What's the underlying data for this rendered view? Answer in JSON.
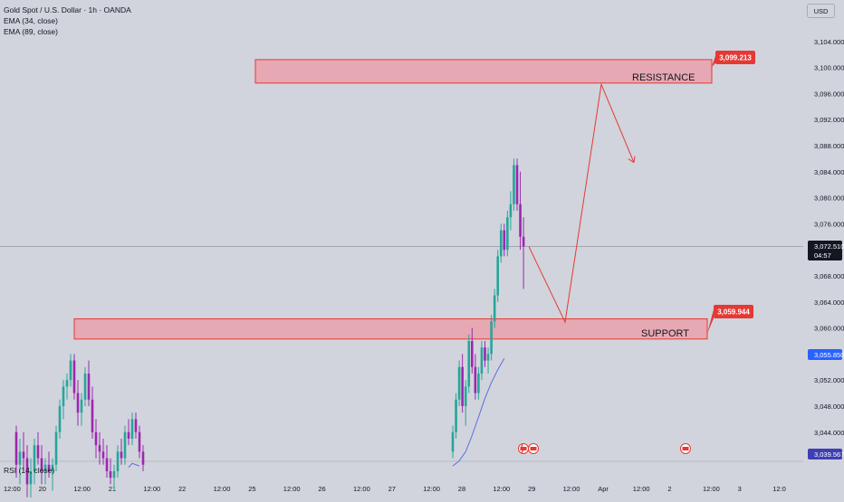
{
  "header": {
    "symbol_line": "Gold Spot / U.S. Dollar · 1h · OANDA",
    "indicators": [
      "EMA (34, close)",
      "EMA (89, close)"
    ],
    "currency": "USD"
  },
  "rsi_label": "RSI (14, close)",
  "zones": {
    "resistance": {
      "label": "RESISTANCE",
      "price_label": "3,099.213",
      "low": 3097.6,
      "high": 3101.2
    },
    "support": {
      "label": "SUPPORT",
      "price_label": "3,059.944",
      "low": 3058.3,
      "high": 3061.4
    }
  },
  "price_tags": {
    "current": {
      "price": "3,072.510",
      "countdown": "04:57"
    },
    "ema": {
      "price": "3,055.850"
    },
    "ema_long": {
      "price": "3,039.567"
    }
  },
  "colors": {
    "background": "#d1d4dc",
    "bull": "#26a69a",
    "bear": "#9c27b0",
    "zone_fill": "#e6a8b2",
    "zone_stroke": "#e53935",
    "arrow": "#e53935",
    "ema": "#5b6ee1",
    "tag_red": "#e53935",
    "tag_blue": "#2962ff",
    "tag_navy": "#3f3fb3",
    "tag_dark": "#131722"
  },
  "chart_data": {
    "type": "candlestick",
    "title": "Gold Spot / U.S. Dollar · 1h · OANDA",
    "y_axis_ticks": [
      "3,044.000",
      "3,048.000",
      "3,052.000",
      "3,060.000",
      "3,064.000",
      "3,068.000",
      "3,076.000",
      "3,080.000",
      "3,084.000",
      "3,088.000",
      "3,092.000",
      "3,096.000",
      "3,100.000",
      "3,104.000"
    ],
    "ylim": [
      3040,
      3107
    ],
    "x_axis_ticks": [
      "12:00",
      "20",
      "12:00",
      "21",
      "12:00",
      "22",
      "12:00",
      "25",
      "12:00",
      "26",
      "12:00",
      "27",
      "12:00",
      "28",
      "12:00",
      "29",
      "12:00",
      "Apr",
      "12:00",
      "2",
      "12:00",
      "3",
      "12:0"
    ],
    "projection_path": [
      {
        "x": "28 13:00",
        "y": 3072.5
      },
      {
        "x": "29 09:00",
        "y": 3060.9
      },
      {
        "x": "29 13:00",
        "y": 3097.4
      },
      {
        "x": "29 17:00",
        "y": 3085.4
      }
    ],
    "event_markers": [
      "US",
      "US",
      "US"
    ],
    "candles": [
      {
        "o": 3044,
        "h": 3045,
        "l": 3037,
        "c": 3039
      },
      {
        "o": 3039,
        "h": 3043,
        "l": 3036,
        "c": 3041
      },
      {
        "o": 3041,
        "h": 3044,
        "l": 3038,
        "c": 3040
      },
      {
        "o": 3040,
        "h": 3042,
        "l": 3034,
        "c": 3036
      },
      {
        "o": 3036,
        "h": 3040,
        "l": 3033,
        "c": 3038
      },
      {
        "o": 3038,
        "h": 3043,
        "l": 3036,
        "c": 3042
      },
      {
        "o": 3042,
        "h": 3044,
        "l": 3039,
        "c": 3040
      },
      {
        "o": 3040,
        "h": 3042,
        "l": 3036,
        "c": 3038
      },
      {
        "o": 3038,
        "h": 3040,
        "l": 3036,
        "c": 3039
      },
      {
        "o": 3039,
        "h": 3041,
        "l": 3037,
        "c": 3038
      },
      {
        "o": 3038,
        "h": 3040,
        "l": 3035,
        "c": 3039
      },
      {
        "o": 3039,
        "h": 3045,
        "l": 3038,
        "c": 3044
      },
      {
        "o": 3044,
        "h": 3049,
        "l": 3043,
        "c": 3048
      },
      {
        "o": 3048,
        "h": 3052,
        "l": 3046,
        "c": 3051
      },
      {
        "o": 3051,
        "h": 3053,
        "l": 3049,
        "c": 3052
      },
      {
        "o": 3052,
        "h": 3056,
        "l": 3051,
        "c": 3055
      },
      {
        "o": 3055,
        "h": 3056,
        "l": 3049,
        "c": 3050
      },
      {
        "o": 3050,
        "h": 3052,
        "l": 3045,
        "c": 3047
      },
      {
        "o": 3047,
        "h": 3050,
        "l": 3045,
        "c": 3049
      },
      {
        "o": 3049,
        "h": 3054,
        "l": 3048,
        "c": 3053
      },
      {
        "o": 3053,
        "h": 3055,
        "l": 3048,
        "c": 3049
      },
      {
        "o": 3049,
        "h": 3051,
        "l": 3043,
        "c": 3044
      },
      {
        "o": 3044,
        "h": 3046,
        "l": 3040,
        "c": 3042
      },
      {
        "o": 3042,
        "h": 3044,
        "l": 3039,
        "c": 3041
      },
      {
        "o": 3041,
        "h": 3043,
        "l": 3039,
        "c": 3040
      },
      {
        "o": 3040,
        "h": 3042,
        "l": 3037,
        "c": 3038
      },
      {
        "o": 3038,
        "h": 3040,
        "l": 3036,
        "c": 3037
      },
      {
        "o": 3037,
        "h": 3039,
        "l": 3035,
        "c": 3038
      },
      {
        "o": 3038,
        "h": 3042,
        "l": 3037,
        "c": 3041
      },
      {
        "o": 3041,
        "h": 3043,
        "l": 3039,
        "c": 3040
      },
      {
        "o": 3040,
        "h": 3045,
        "l": 3039,
        "c": 3044
      },
      {
        "o": 3044,
        "h": 3046,
        "l": 3042,
        "c": 3043
      },
      {
        "o": 3043,
        "h": 3047,
        "l": 3042,
        "c": 3046
      },
      {
        "o": 3046,
        "h": 3047,
        "l": 3043,
        "c": 3044
      },
      {
        "o": 3044,
        "h": 3045,
        "l": 3040,
        "c": 3041
      },
      {
        "o": 3041,
        "h": 3042,
        "l": 3038,
        "c": 3039
      },
      {
        "o": 3041,
        "h": 3045,
        "l": 3040,
        "c": 3044
      },
      {
        "o": 3044,
        "h": 3050,
        "l": 3043,
        "c": 3049
      },
      {
        "o": 3049,
        "h": 3055,
        "l": 3048,
        "c": 3054
      },
      {
        "o": 3054,
        "h": 3056,
        "l": 3047,
        "c": 3048
      },
      {
        "o": 3048,
        "h": 3052,
        "l": 3045,
        "c": 3051
      },
      {
        "o": 3051,
        "h": 3059,
        "l": 3050,
        "c": 3058
      },
      {
        "o": 3058,
        "h": 3060,
        "l": 3053,
        "c": 3054
      },
      {
        "o": 3054,
        "h": 3056,
        "l": 3049,
        "c": 3050
      },
      {
        "o": 3050,
        "h": 3054,
        "l": 3049,
        "c": 3053
      },
      {
        "o": 3053,
        "h": 3058,
        "l": 3052,
        "c": 3057
      },
      {
        "o": 3057,
        "h": 3058,
        "l": 3054,
        "c": 3055
      },
      {
        "o": 3055,
        "h": 3057,
        "l": 3053,
        "c": 3056
      },
      {
        "o": 3056,
        "h": 3062,
        "l": 3055,
        "c": 3061
      },
      {
        "o": 3061,
        "h": 3066,
        "l": 3060,
        "c": 3065
      },
      {
        "o": 3065,
        "h": 3072,
        "l": 3064,
        "c": 3071
      },
      {
        "o": 3071,
        "h": 3076,
        "l": 3070,
        "c": 3075
      },
      {
        "o": 3075,
        "h": 3076,
        "l": 3071,
        "c": 3072
      },
      {
        "o": 3072,
        "h": 3078,
        "l": 3071,
        "c": 3077
      },
      {
        "o": 3077,
        "h": 3081,
        "l": 3075,
        "c": 3079
      },
      {
        "o": 3079,
        "h": 3086,
        "l": 3078,
        "c": 3085
      },
      {
        "o": 3085,
        "h": 3086,
        "l": 3078,
        "c": 3079
      },
      {
        "o": 3079,
        "h": 3084,
        "l": 3072,
        "c": 3074
      },
      {
        "o": 3074,
        "h": 3077,
        "l": 3066,
        "c": 3072.5
      }
    ],
    "ema_line": [
      {
        "i": -2,
        "y": 3038.3
      },
      {
        "i": -1,
        "y": 3038.5
      },
      {
        "i": 0,
        "y": 3038.9
      },
      {
        "i": 1,
        "y": 3039.2
      },
      {
        "i": 0,
        "y": 3038.6
      },
      {
        "i": 1,
        "y": 3039.2
      },
      {
        "i": 2,
        "y": 3039.0
      },
      {
        "i": 3,
        "y": 3038.8
      }
    ],
    "ema_rise": [
      {
        "i": 36,
        "y": 3038.8
      },
      {
        "i": 38,
        "y": 3039.6
      },
      {
        "i": 40,
        "y": 3041.0
      },
      {
        "i": 42,
        "y": 3043.5
      },
      {
        "i": 44,
        "y": 3046.3
      },
      {
        "i": 46,
        "y": 3049.2
      },
      {
        "i": 48,
        "y": 3051.6
      },
      {
        "i": 50,
        "y": 3053.6
      },
      {
        "i": 52,
        "y": 3055.3
      }
    ]
  }
}
